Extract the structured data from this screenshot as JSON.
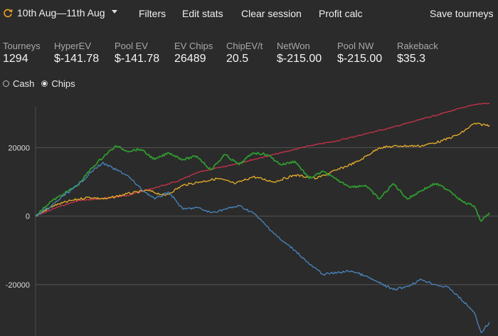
{
  "toolbar": {
    "date_range": "10th Aug—11th Aug",
    "filters": "Filters",
    "edit_stats": "Edit stats",
    "clear_session": "Clear session",
    "profit_calc": "Profit calc",
    "save_tourneys": "Save tourneys"
  },
  "stats": [
    {
      "label": "Tourneys",
      "value": "1294"
    },
    {
      "label": "HyperEV",
      "value": "$-141.78"
    },
    {
      "label": "Pool EV",
      "value": "$-141.78"
    },
    {
      "label": "EV Chips",
      "value": "26489"
    },
    {
      "label": "ChipEV/t",
      "value": "20.5"
    },
    {
      "label": "NetWon",
      "value": "$-215.00"
    },
    {
      "label": "Pool NW",
      "value": "$-215.00"
    },
    {
      "label": "Rakeback",
      "value": "$35.3"
    }
  ],
  "mode": {
    "cash": "Cash",
    "chips": "Chips",
    "selected": "Chips"
  },
  "icons": {
    "range": "refresh-icon",
    "dropdown": "caret-down-icon"
  },
  "chart_data": {
    "type": "line",
    "x_range": [
      0,
      1294
    ],
    "ylim": [
      -35000,
      34000
    ],
    "y_ticks": [
      20000,
      0,
      -20000
    ],
    "y_tick_labels": [
      "20000",
      "0",
      "-20000"
    ],
    "grid": true,
    "series": [
      {
        "color": "#c8324a",
        "x": [
          0,
          60,
          120,
          180,
          260,
          330,
          400,
          470,
          540,
          620,
          700,
          780,
          860,
          940,
          1020,
          1090,
          1160,
          1230,
          1280,
          1294
        ],
        "y": [
          0,
          2500,
          4500,
          5000,
          6000,
          8000,
          10000,
          13000,
          14500,
          16500,
          18500,
          20500,
          22000,
          24000,
          26000,
          28000,
          30000,
          32000,
          33000,
          32800
        ]
      },
      {
        "color": "#e8b02a",
        "x": [
          0,
          50,
          100,
          150,
          200,
          260,
          320,
          370,
          420,
          470,
          520,
          570,
          620,
          680,
          740,
          800,
          860,
          920,
          980,
          1040,
          1100,
          1160,
          1210,
          1250,
          1294
        ],
        "y": [
          0,
          3000,
          4500,
          5500,
          5000,
          6500,
          7500,
          6000,
          9000,
          10000,
          11000,
          9500,
          11500,
          10000,
          12000,
          11000,
          13500,
          16000,
          20000,
          20500,
          20500,
          22000,
          24000,
          27000,
          26500
        ]
      },
      {
        "color": "#2f9a2f",
        "x": [
          0,
          40,
          80,
          120,
          160,
          200,
          230,
          260,
          300,
          340,
          380,
          420,
          460,
          500,
          540,
          580,
          620,
          660,
          700,
          740,
          780,
          820,
          860,
          900,
          940,
          980,
          1020,
          1060,
          1100,
          1140,
          1180,
          1220,
          1250,
          1270,
          1294
        ],
        "y": [
          0,
          4000,
          6500,
          9000,
          14000,
          18000,
          20500,
          19000,
          19500,
          16500,
          18500,
          16500,
          17500,
          13500,
          18000,
          15000,
          18500,
          18000,
          15000,
          16000,
          11000,
          13000,
          10500,
          8500,
          9000,
          5000,
          9500,
          5000,
          7500,
          9500,
          7500,
          4000,
          3000,
          -1500,
          1000
        ]
      },
      {
        "color": "#4a86c0",
        "x": [
          0,
          40,
          80,
          120,
          160,
          190,
          220,
          260,
          300,
          340,
          380,
          420,
          460,
          500,
          540,
          580,
          620,
          660,
          700,
          740,
          780,
          820,
          860,
          900,
          940,
          980,
          1020,
          1060,
          1100,
          1140,
          1180,
          1220,
          1250,
          1270,
          1294
        ],
        "y": [
          0,
          2500,
          6000,
          9000,
          13000,
          15500,
          14000,
          12000,
          8000,
          5000,
          7000,
          2000,
          2500,
          1000,
          2000,
          3000,
          1000,
          -3000,
          -7000,
          -10000,
          -14000,
          -17000,
          -16500,
          -16000,
          -17500,
          -19500,
          -21500,
          -20500,
          -18500,
          -20000,
          -21000,
          -25000,
          -28000,
          -34000,
          -31000
        ]
      }
    ]
  }
}
